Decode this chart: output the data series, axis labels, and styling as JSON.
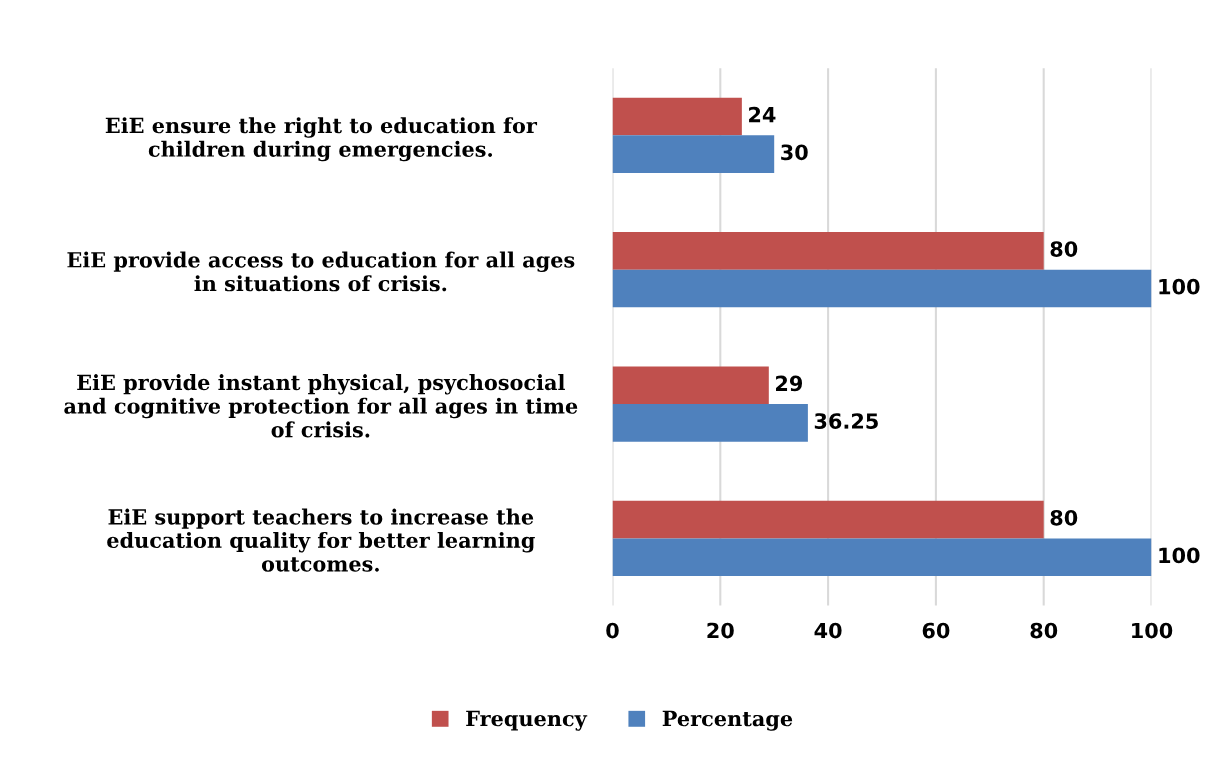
{
  "chart_data": {
    "type": "bar",
    "orientation": "horizontal",
    "categories": [
      "EiE ensure the right to education for\nchildren during emergencies.",
      "EiE provide access to education for all ages\nin situations of crisis.",
      "EiE provide instant physical, psychosocial\nand cognitive protection for all ages in time\nof crisis.",
      "EiE support teachers to increase the\neducation quality for better learning\noutcomes."
    ],
    "series": [
      {
        "name": "Frequency",
        "color": "#c0504d",
        "values": [
          24,
          80,
          29,
          80
        ]
      },
      {
        "name": "Percentage",
        "color": "#4f81bd",
        "values": [
          30,
          100,
          36.25,
          100
        ]
      }
    ],
    "xlim": [
      0,
      100
    ],
    "xticks": [
      0,
      20,
      40,
      60,
      80,
      100
    ],
    "grid": "x",
    "legend": "bottom",
    "data_labels": true
  }
}
